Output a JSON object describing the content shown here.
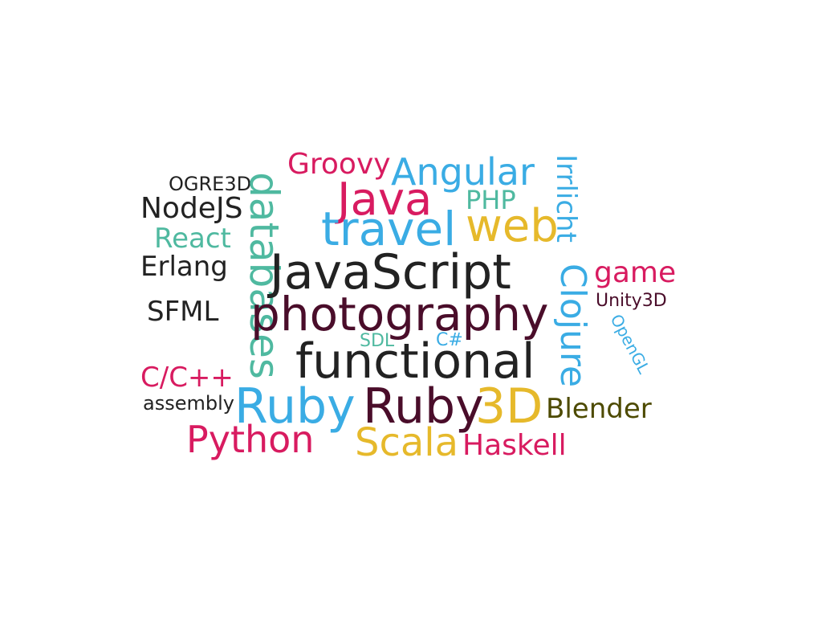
{
  "colors": {
    "crimson": "#d81b60",
    "blue": "#3aace4",
    "gold": "#e6b92b",
    "teal": "#4fb9a0",
    "dark": "#222222",
    "maroon": "#4a0d2a",
    "olive": "#4d4a00"
  },
  "words": [
    {
      "text": "Groovy",
      "color": "#d81b60"
    },
    {
      "text": "Angular",
      "color": "#3aace4"
    },
    {
      "text": "OGRE3D",
      "color": "#222222"
    },
    {
      "text": "databases",
      "color": "#4fb9a0"
    },
    {
      "text": "Java",
      "color": "#d81b60"
    },
    {
      "text": "PHP",
      "color": "#4fb9a0"
    },
    {
      "text": "Irrlicht",
      "color": "#3aace4"
    },
    {
      "text": "NodeJS",
      "color": "#222222"
    },
    {
      "text": "travel",
      "color": "#3aace4"
    },
    {
      "text": "web",
      "color": "#e6b92b"
    },
    {
      "text": "React",
      "color": "#4fb9a0"
    },
    {
      "text": "Erlang",
      "color": "#222222"
    },
    {
      "text": "JavaScript",
      "color": "#222222"
    },
    {
      "text": "Clojure",
      "color": "#3aace4"
    },
    {
      "text": "game",
      "color": "#d81b60"
    },
    {
      "text": "Unity3D",
      "color": "#4a0d2a"
    },
    {
      "text": "SFML",
      "color": "#222222"
    },
    {
      "text": "photography",
      "color": "#4a0d2a"
    },
    {
      "text": "OpenGL",
      "color": "#3aace4"
    },
    {
      "text": "SDL",
      "color": "#4fb9a0"
    },
    {
      "text": "C#",
      "color": "#3aace4"
    },
    {
      "text": "functional",
      "color": "#222222"
    },
    {
      "text": "C/C++",
      "color": "#d81b60"
    },
    {
      "text": "assembly",
      "color": "#222222"
    },
    {
      "text": "Ruby",
      "color": "#3aace4"
    },
    {
      "text": "Ruby",
      "color": "#4a0d2a"
    },
    {
      "text": "3D",
      "color": "#e6b92b"
    },
    {
      "text": "Blender",
      "color": "#4d4a00"
    },
    {
      "text": "Python",
      "color": "#d81b60"
    },
    {
      "text": "Scala",
      "color": "#e6b92b"
    },
    {
      "text": "Haskell",
      "color": "#d81b60"
    }
  ]
}
